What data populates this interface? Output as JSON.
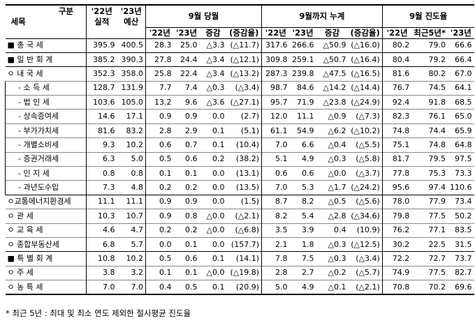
{
  "header": {
    "corner_top": "구분",
    "corner_bottom": "세목",
    "col22": [
      "'22년",
      "실적"
    ],
    "col23": [
      "'23년",
      "예산"
    ],
    "group1": "9월 당월",
    "group2": "9월까지 누계",
    "group3": "9월 진도율",
    "sub1": [
      "'22년",
      "'23년",
      "증감",
      "(증감율)"
    ],
    "sub2": [
      "'22년",
      "'23년",
      "증감",
      "(증감율)"
    ],
    "sub3": [
      "'22년",
      "최근5년*",
      "'23년"
    ]
  },
  "rows": [
    {
      "label": "■ 총 국 세",
      "level": 0,
      "v": [
        "395.9",
        "400.5",
        "28.3",
        "25.0",
        "△3.3",
        "(△11.7)",
        "317.6",
        "266.6",
        "△50.9",
        "(△16.0)",
        "80.2",
        "79.0",
        "66.6"
      ]
    },
    {
      "label": "■ 일 반 회 계",
      "level": 0,
      "v": [
        "385.2",
        "390.3",
        "27.8",
        "24.4",
        "△3.4",
        "(△12.1)",
        "309.8",
        "259.1",
        "△50.7",
        "(△16.4)",
        "80.4",
        "79.2",
        "66.4"
      ]
    },
    {
      "label": "ㅇ 내 국 세",
      "level": 1,
      "v": [
        "352.3",
        "358.0",
        "25.8",
        "22.4",
        "△3.4",
        "(△13.2)",
        "287.3",
        "239.8",
        "△47.5",
        "(△16.5)",
        "81.6",
        "80.2",
        "67.0"
      ]
    },
    {
      "label": "- 소 득 세",
      "level": 2,
      "v": [
        "128.7",
        "131.9",
        "7.7",
        "7.4",
        "△0.3",
        "(△3.4)",
        "98.7",
        "84.6",
        "△14.2",
        "(△14.4)",
        "76.7",
        "74.5",
        "64.1"
      ]
    },
    {
      "label": "- 법 인 세",
      "level": 2,
      "v": [
        "103.6",
        "105.0",
        "13.2",
        "9.6",
        "△3.6",
        "(△27.1)",
        "95.7",
        "71.9",
        "△23.8",
        "(△24.9)",
        "92.4",
        "91.8",
        "68.5"
      ]
    },
    {
      "label": "- 상속증여세",
      "level": 2,
      "v": [
        "14.6",
        "17.1",
        "0.9",
        "0.9",
        "0.0",
        "(2.7)",
        "12.0",
        "11.1",
        "△0.9",
        "(△7.3)",
        "82.3",
        "76.1",
        "65.0"
      ]
    },
    {
      "label": "- 부가가치세",
      "level": 2,
      "v": [
        "81.6",
        "83.2",
        "2.8",
        "2.9",
        "0.1",
        "(5.1)",
        "61.1",
        "54.9",
        "△6.2",
        "(△10.2)",
        "74.8",
        "74.4",
        "65.9"
      ]
    },
    {
      "label": "- 개별소비세",
      "level": 2,
      "v": [
        "9.3",
        "10.2",
        "0.6",
        "0.7",
        "0.1",
        "(10.4)",
        "7.0",
        "6.6",
        "△0.4",
        "(△5.5)",
        "75.1",
        "74.8",
        "64.8"
      ]
    },
    {
      "label": "- 증권거래세",
      "level": 2,
      "v": [
        "6.3",
        "5.0",
        "0.5",
        "0.6",
        "0.2",
        "(38.2)",
        "5.1",
        "4.9",
        "△0.3",
        "(△5.8)",
        "81.7",
        "79.5",
        "97.5"
      ]
    },
    {
      "label": "- 인 지 세",
      "level": 2,
      "v": [
        "0.8",
        "0.8",
        "0.1",
        "0.1",
        "0.0",
        "(13.1)",
        "0.6",
        "0.6",
        "△0.0",
        "(△3.7)",
        "77.8",
        "75.3",
        "73.3"
      ]
    },
    {
      "label": "- 과년도수입",
      "level": 2,
      "v": [
        "7.3",
        "4.8",
        "0.2",
        "0.2",
        "0.0",
        "(13.5)",
        "7.0",
        "5.3",
        "△1.7",
        "(△24.2)",
        "95.6",
        "97.4",
        "110.6"
      ]
    },
    {
      "label": "ㅇ교통에너지환경세",
      "level": 1,
      "v": [
        "11.1",
        "11.1",
        "0.9",
        "0.9",
        "0.0",
        "(1.5)",
        "8.7",
        "8.2",
        "△0.5",
        "(△5.6)",
        "78.0",
        "77.9",
        "73.4"
      ]
    },
    {
      "label": "ㅇ 관 세",
      "level": 1,
      "v": [
        "10.3",
        "10.7",
        "0.9",
        "0.8",
        "△0.0",
        "(△2.1)",
        "8.2",
        "5.4",
        "△2.8",
        "(△34.6)",
        "79.8",
        "77.5",
        "50.2"
      ]
    },
    {
      "label": "ㅇ 교 육 세",
      "level": 1,
      "v": [
        "4.6",
        "4.7",
        "0.2",
        "0.2",
        "△0.0",
        "(△6.8)",
        "3.5",
        "3.9",
        "0.4",
        "(10.9)",
        "76.2",
        "77.1",
        "83.5"
      ]
    },
    {
      "label": "ㅇ 종합부동산세",
      "level": 1,
      "v": [
        "6.8",
        "5.7",
        "0.0",
        "0.1",
        "0.0",
        "(157.7)",
        "2.1",
        "1.8",
        "△0.3",
        "(△12.5)",
        "30.2",
        "22.5",
        "31.5"
      ]
    },
    {
      "label": "■ 특 별 회 계",
      "level": 0,
      "v": [
        "10.8",
        "10.2",
        "0.5",
        "0.6",
        "0.1",
        "(14.1)",
        "7.8",
        "7.5",
        "△0.3",
        "(△3.4)",
        "72.2",
        "72.7",
        "73.7"
      ]
    },
    {
      "label": "ㅇ 주 세",
      "level": 1,
      "v": [
        "3.8",
        "3.2",
        "0.1",
        "0.1",
        "△0.0",
        "(△19.8)",
        "2.8",
        "2.7",
        "△0.2",
        "(△5.7)",
        "74.9",
        "77.5",
        "82.7"
      ]
    },
    {
      "label": "ㅇ 농 특 세",
      "level": 1,
      "v": [
        "7.0",
        "7.0",
        "0.4",
        "0.5",
        "0.1",
        "(20.9)",
        "5.0",
        "4.9",
        "△0.1",
        "(△2.1)",
        "70.8",
        "70.2",
        "69.6"
      ]
    }
  ],
  "footnote": "* 최근 5년 : 최대 및 최소 연도 제외한 절사평균 진도율"
}
